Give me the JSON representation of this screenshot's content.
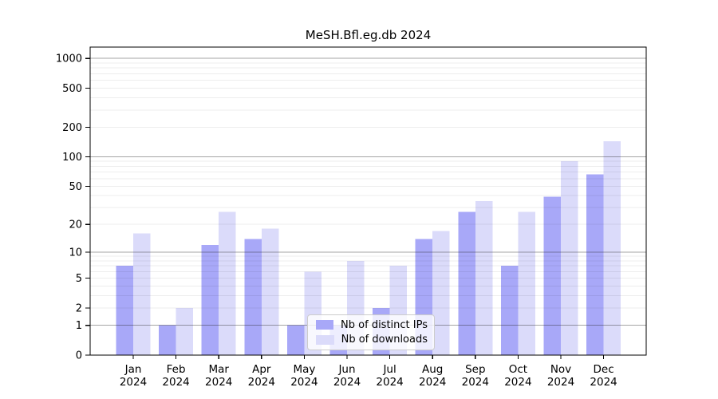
{
  "chart_data": {
    "type": "bar",
    "title": "MeSH.Bfl.eg.db 2024",
    "categories": [
      "Jan",
      "Feb",
      "Mar",
      "Apr",
      "May",
      "Jun",
      "Jul",
      "Aug",
      "Sep",
      "Oct",
      "Nov",
      "Dec"
    ],
    "x_tick_year_label": "2024",
    "series": [
      {
        "name": "Nb of distinct IPs",
        "color": "#a8a8f8",
        "values": [
          7,
          1,
          12,
          14,
          1,
          1,
          2,
          14,
          27,
          7,
          39,
          66
        ]
      },
      {
        "name": "Nb of downloads",
        "color": "#dbdbfa",
        "values": [
          16,
          2,
          27,
          18,
          6,
          8,
          7,
          17,
          35,
          27,
          90,
          145
        ]
      }
    ],
    "y_axis": {
      "scale": "log1p",
      "labeled_ticks": [
        0,
        1,
        2,
        5,
        10,
        20,
        50,
        100,
        200,
        500,
        1000
      ],
      "decade_gridlines": [
        1,
        10,
        100,
        1000
      ],
      "minor_gridlines": [
        2,
        3,
        4,
        5,
        6,
        7,
        8,
        9,
        20,
        30,
        40,
        50,
        60,
        70,
        80,
        90,
        200,
        300,
        400,
        500,
        600,
        700,
        800,
        900
      ],
      "range_max": 1000
    },
    "legend": {
      "position": "inside-bottom-center"
    },
    "grid": true,
    "colors": {
      "axis": "#000000",
      "major_grid": "#a0a0a0",
      "minor_grid": "#ebebeb"
    }
  }
}
